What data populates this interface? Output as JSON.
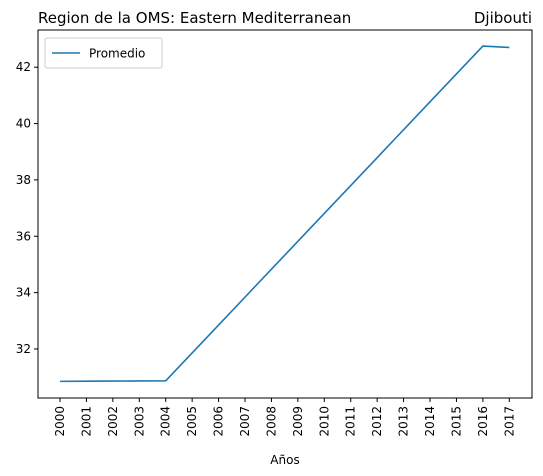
{
  "chart_data": {
    "type": "line",
    "title_left": "Region de la OMS: Eastern Mediterranean",
    "title_right": "Djibouti",
    "xlabel": "Años",
    "ylabel": "",
    "categories": [
      "2000",
      "2001",
      "2002",
      "2003",
      "2004",
      "2005",
      "2006",
      "2007",
      "2008",
      "2009",
      "2010",
      "2011",
      "2012",
      "2013",
      "2014",
      "2015",
      "2016",
      "2017"
    ],
    "series": [
      {
        "name": "Promedio",
        "color": "#1f77b4",
        "values": [
          30.85,
          30.855,
          30.86,
          30.865,
          30.87,
          31.86,
          32.85,
          33.84,
          34.83,
          35.82,
          36.81,
          37.8,
          38.79,
          39.78,
          40.77,
          41.76,
          42.75,
          42.7
        ]
      }
    ],
    "yticks": [
      32,
      34,
      36,
      38,
      40,
      42
    ],
    "ylim": [
      30.26,
      43.32
    ],
    "grid": false,
    "legend_position": "top-left"
  }
}
